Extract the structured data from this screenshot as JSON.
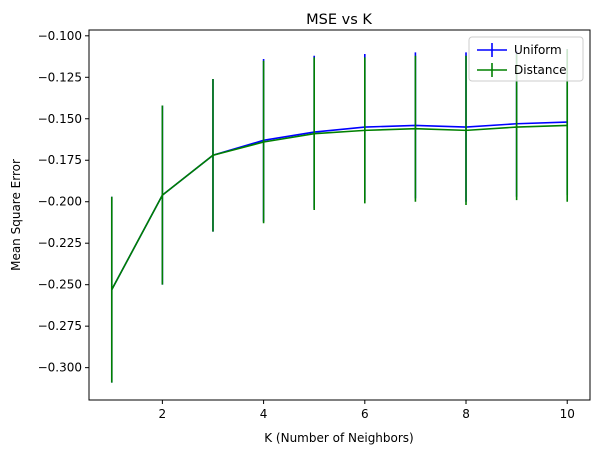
{
  "chart_data": {
    "type": "line",
    "title": "MSE vs K",
    "xlabel": "K (Number of Neighbors)",
    "ylabel": "Mean Square Error",
    "x": [
      1,
      2,
      3,
      4,
      5,
      6,
      7,
      8,
      9,
      10
    ],
    "xticks": [
      2,
      4,
      6,
      8,
      10
    ],
    "yticks": [
      -0.1,
      -0.125,
      -0.15,
      -0.175,
      -0.2,
      -0.225,
      -0.25,
      -0.275,
      -0.3
    ],
    "ytick_labels": [
      "−0.100",
      "−0.125",
      "−0.150",
      "−0.175",
      "−0.200",
      "−0.225",
      "−0.250",
      "−0.275",
      "−0.300"
    ],
    "xlim": [
      0.55,
      10.45
    ],
    "ylim": [
      -0.3195,
      -0.0965
    ],
    "grid": false,
    "legend_position": "top-right",
    "series": [
      {
        "name": "Uniform",
        "color": "#0000ff",
        "values": [
          -0.253,
          -0.196,
          -0.172,
          -0.163,
          -0.158,
          -0.155,
          -0.154,
          -0.155,
          -0.153,
          -0.152
        ],
        "errors": [
          0.056,
          0.054,
          0.046,
          0.049,
          0.046,
          0.044,
          0.044,
          0.045,
          0.044,
          0.044
        ]
      },
      {
        "name": "Distance",
        "color": "#008000",
        "values": [
          -0.253,
          -0.196,
          -0.172,
          -0.164,
          -0.159,
          -0.157,
          -0.156,
          -0.157,
          -0.155,
          -0.154
        ],
        "errors": [
          0.056,
          0.054,
          0.046,
          0.049,
          0.046,
          0.044,
          0.044,
          0.045,
          0.044,
          0.046
        ]
      }
    ]
  }
}
